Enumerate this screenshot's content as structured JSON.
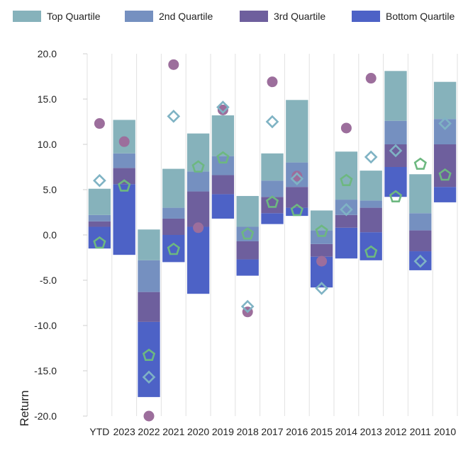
{
  "chart_data": {
    "type": "bar",
    "chart_subtype": "floating-stacked-quartile-ranges-with-markers",
    "categories": [
      "YTD",
      "2023",
      "2022",
      "2021",
      "2020",
      "2019",
      "2018",
      "2017",
      "2016",
      "2015",
      "2014",
      "2013",
      "2012",
      "2011",
      "2010"
    ],
    "ylabel": "Return",
    "xlabel": "",
    "title": "",
    "ylim": [
      -20,
      20
    ],
    "y_ticks": [
      "20.0",
      "15.0",
      "10.0",
      "5.0",
      "0.0",
      "-5.0",
      "-10.0",
      "-15.0",
      "-20.0"
    ],
    "y_tick_values": [
      20,
      15,
      10,
      5,
      0,
      -5,
      -10,
      -15,
      -20
    ],
    "grid": "vertical-lines",
    "legend_position": "top",
    "legend": [
      {
        "key": "top",
        "label": "Top Quartile",
        "color": "#86b2bb"
      },
      {
        "key": "second",
        "label": "2nd Quartile",
        "color": "#7590c0"
      },
      {
        "key": "third",
        "label": "3rd Quartile",
        "color": "#6e5f9d"
      },
      {
        "key": "bottom",
        "label": "Bottom Quartile",
        "color": "#4d62c6"
      }
    ],
    "quartile_bounds": {
      "description": "per category: [bottom_min, bottom/3rd boundary, 3rd/2nd boundary, 2nd/top boundary, top_max]",
      "values": [
        [
          -1.5,
          0.9,
          1.5,
          2.2,
          5.1
        ],
        [
          -2.2,
          5.6,
          7.4,
          9.0,
          12.7
        ],
        [
          -17.9,
          -9.6,
          -6.3,
          -2.8,
          0.6
        ],
        [
          -3.0,
          0.0,
          1.8,
          3.0,
          7.3
        ],
        [
          -6.5,
          0.9,
          4.8,
          7.0,
          11.2
        ],
        [
          1.8,
          4.5,
          6.6,
          8.7,
          13.2
        ],
        [
          -4.5,
          -2.7,
          -0.7,
          0.9,
          4.3
        ],
        [
          1.2,
          2.4,
          4.2,
          6.0,
          9.0
        ],
        [
          2.1,
          3.0,
          5.3,
          8.0,
          14.9
        ],
        [
          -5.8,
          -2.4,
          -1.0,
          0.5,
          2.7
        ],
        [
          -2.6,
          0.8,
          2.2,
          3.9,
          9.2
        ],
        [
          -2.8,
          0.3,
          3.0,
          3.8,
          7.1
        ],
        [
          4.2,
          7.5,
          10.0,
          12.6,
          18.1
        ],
        [
          -3.9,
          -1.8,
          0.5,
          2.4,
          6.7
        ],
        [
          3.6,
          5.3,
          10.0,
          12.8,
          16.9
        ]
      ]
    },
    "markers": [
      {
        "shape": "circle",
        "color": "#9c6e9c",
        "values": [
          12.3,
          10.3,
          -20.0,
          18.8,
          0.8,
          13.8,
          -8.5,
          16.9,
          6.5,
          -2.9,
          11.8,
          17.3,
          null,
          null,
          null
        ]
      },
      {
        "shape": "diamond",
        "color": "#7fb3c4",
        "values": [
          6.0,
          null,
          -15.7,
          13.1,
          null,
          14.1,
          -7.9,
          12.5,
          6.2,
          -5.9,
          2.8,
          8.6,
          9.3,
          -2.9,
          12.3
        ]
      },
      {
        "shape": "pentagon",
        "color": "#6db880",
        "values": [
          -0.9,
          5.4,
          -13.3,
          -1.6,
          7.5,
          8.5,
          0.1,
          3.6,
          2.7,
          0.4,
          6.0,
          -1.9,
          4.2,
          7.8,
          6.6
        ]
      }
    ]
  }
}
